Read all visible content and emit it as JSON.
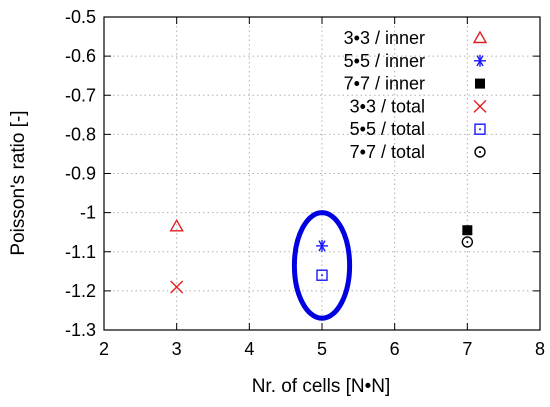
{
  "chart_data": {
    "type": "scatter",
    "title": "",
    "xlabel": "Nr. of cells [N•N]",
    "ylabel": "Poisson's ratio [-]",
    "xlim": [
      2,
      8
    ],
    "ylim": [
      -1.3,
      -0.5
    ],
    "y_inverted": true,
    "grid": true,
    "legend_position": "top-right",
    "x_ticks": [
      "2",
      "3",
      "4",
      "5",
      "6",
      "7",
      "8"
    ],
    "y_ticks": [
      "-0.5",
      "-0.6",
      "-0.7",
      "-0.8",
      "-0.9",
      "-1",
      "-1.1",
      "-1.2",
      "-1.3"
    ],
    "series": [
      {
        "name": "3•3 / inner",
        "marker": "triangle",
        "color": "#e02020",
        "points": [
          {
            "x": 3,
            "y": -1.035
          }
        ]
      },
      {
        "name": "5•5 / inner",
        "marker": "asterisk",
        "color": "#1a1aff",
        "points": [
          {
            "x": 5,
            "y": -1.085
          }
        ]
      },
      {
        "name": "7•7 / inner",
        "marker": "filled-square",
        "color": "#000000",
        "points": [
          {
            "x": 7,
            "y": -1.045
          }
        ]
      },
      {
        "name": "3•3 / total",
        "marker": "cross",
        "color": "#e02020",
        "points": [
          {
            "x": 3,
            "y": -1.19
          }
        ]
      },
      {
        "name": "5•5 / total",
        "marker": "dotted-square",
        "color": "#1a1aff",
        "points": [
          {
            "x": 5,
            "y": -1.16
          }
        ]
      },
      {
        "name": "7•7 / total",
        "marker": "dotted-circle",
        "color": "#000000",
        "points": [
          {
            "x": 7,
            "y": -1.075
          }
        ]
      }
    ],
    "highlight_ellipse": {
      "color": "#0000e0",
      "center": {
        "x": 5,
        "y": -1.135
      },
      "rx": 0.38,
      "ry": 0.135
    }
  }
}
